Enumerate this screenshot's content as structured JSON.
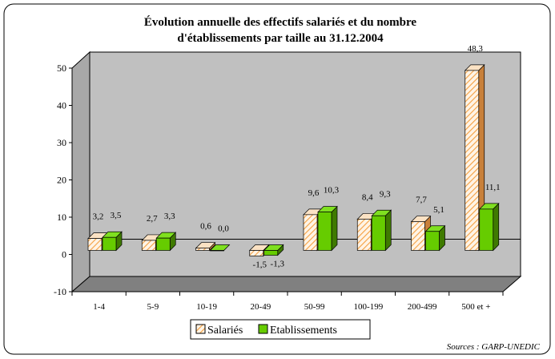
{
  "chart_data": {
    "type": "bar3d",
    "title": "Évolution annuelle des effectifs salariés et du nombre d'établissements par taille au 31.12.2004",
    "categories": [
      "1-4",
      "5-9",
      "10-19",
      "20-49",
      "50-99",
      "100-199",
      "200-499",
      "500 et +"
    ],
    "series": [
      {
        "name": "Salariés",
        "color": "#f5a040",
        "values": [
          3.2,
          2.7,
          0.6,
          -1.5,
          9.6,
          8.4,
          7.7,
          48.3
        ],
        "value_labels": [
          "3,2",
          "2,7",
          "0,6",
          "-1,5",
          "9,6",
          "8,4",
          "7,7",
          "48,3"
        ]
      },
      {
        "name": "Etablissements",
        "color": "#66cc00",
        "values": [
          3.5,
          3.3,
          0.0,
          -1.3,
          10.3,
          9.3,
          5.1,
          11.1
        ],
        "value_labels": [
          "3,5",
          "3,3",
          "0,0",
          "-1,3",
          "10,3",
          "9,3",
          "5,1",
          "11,1"
        ]
      }
    ],
    "ylim": [
      -10,
      50
    ],
    "yticks": [
      -10,
      0,
      10,
      20,
      30,
      40,
      50
    ],
    "source": "Sources : GARP-UNEDIC"
  }
}
